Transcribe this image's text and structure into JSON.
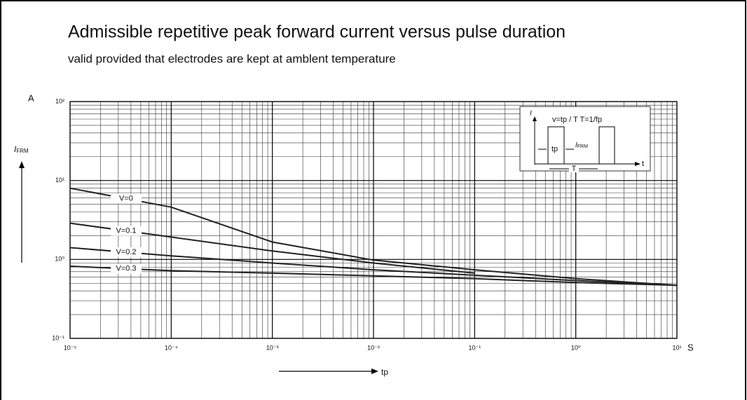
{
  "chart_data": {
    "type": "line",
    "title": "Admissible repetitive peak forward current versus pulse duration",
    "subtitle": "valid provided that electrodes are kept at amblent  temperature",
    "y_unit": "A",
    "ylabel_symbol": "I",
    "ylabel_subscript": "FRM",
    "x_unit": "S",
    "xlabel": "tp",
    "x_scale": "log",
    "y_scale": "log",
    "grid": true,
    "xlim": [
      1e-05,
      10
    ],
    "ylim": [
      0.1,
      100
    ],
    "xticks": [
      {
        "value": 1e-05,
        "label": "10⁻⁵"
      },
      {
        "value": 0.0001,
        "label": "10⁻⁴"
      },
      {
        "value": 0.001,
        "label": "10⁻³"
      },
      {
        "value": 0.01,
        "label": "10⁻²"
      },
      {
        "value": 0.1,
        "label": "10⁻¹"
      },
      {
        "value": 1,
        "label": "10⁰"
      },
      {
        "value": 10,
        "label": "10¹"
      }
    ],
    "yticks": [
      {
        "value": 0.1,
        "label": "10⁻¹"
      },
      {
        "value": 1,
        "label": "10⁰"
      },
      {
        "value": 10,
        "label": "10¹"
      },
      {
        "value": 100,
        "label": "10²"
      }
    ],
    "x": [
      1e-05,
      0.0001,
      0.001,
      0.01,
      0.1,
      1,
      10
    ],
    "series": [
      {
        "name": "V=0",
        "color": "#222222",
        "values": [
          8.0,
          4.6,
          1.66,
          0.98,
          0.74,
          0.57,
          0.47
        ]
      },
      {
        "name": "V=0.1",
        "color": "#222222",
        "values": [
          2.88,
          1.92,
          1.28,
          0.9,
          0.67,
          null,
          null
        ]
      },
      {
        "name": "V=0.2",
        "color": "#222222",
        "values": [
          1.41,
          1.11,
          0.9,
          0.74,
          0.63,
          0.54,
          0.47
        ]
      },
      {
        "name": "V=0.3",
        "color": "#222222",
        "values": [
          0.82,
          0.72,
          0.67,
          0.62,
          0.57,
          0.51,
          0.47
        ]
      }
    ],
    "inset": {
      "formula": "v=tp / T T=1/fp",
      "axis_i": "I",
      "axis_t": "t",
      "tp": "tp",
      "ifrm_symbol": "I",
      "ifrm_subscript": "FRM",
      "period": "T"
    }
  }
}
